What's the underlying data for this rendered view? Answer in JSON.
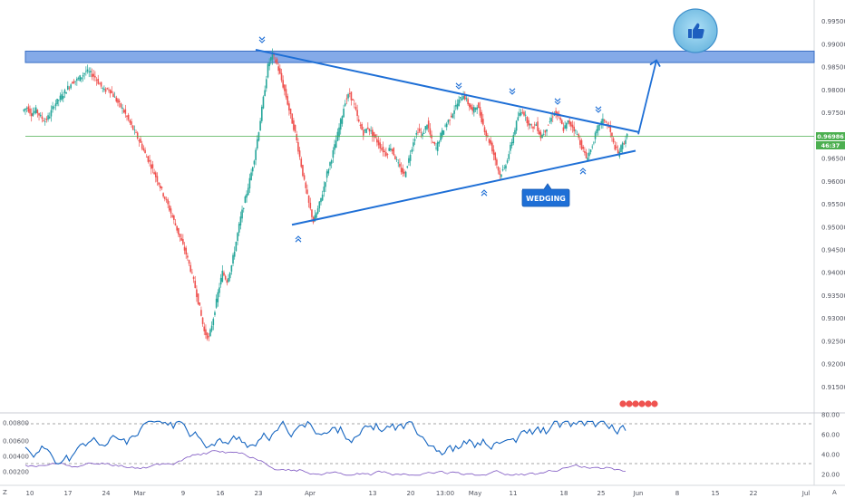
{
  "chart_data": [
    {
      "type": "candlestick",
      "x_tick_labels": [
        "10",
        "17",
        "24",
        "Mar",
        "9",
        "16",
        "23",
        "Apr",
        "13",
        "20",
        "13:00",
        "May",
        "11",
        "18",
        "25",
        "Jun",
        "8",
        "15",
        "22",
        "Jul"
      ],
      "y_tick_labels": [
        "0.99500",
        "0.99000",
        "0.98500",
        "0.98000",
        "0.97500",
        "0.97000",
        "0.96500",
        "0.96000",
        "0.95500",
        "0.95000",
        "0.94500",
        "0.94000",
        "0.93500",
        "0.93000",
        "0.92500",
        "0.92000",
        "0.91500"
      ],
      "ylim": [
        0.9125,
        0.9985
      ],
      "current_price": 0.96986,
      "current_price_label": "0.96986",
      "countdown_label": "46:37",
      "resistance_zone": [
        0.986,
        0.9885
      ],
      "trendlines": {
        "upper": {
          "from": [
            "23",
            0.9888
          ],
          "to": [
            "Jun",
            0.9708
          ]
        },
        "lower": {
          "from": [
            "Apr",
            0.9505
          ],
          "to": [
            "Jun",
            0.9667
          ]
        },
        "projection": {
          "from": [
            "Jun",
            0.9703
          ],
          "to": [
            "Jun",
            0.9865
          ]
        }
      },
      "annotation": "WEDGING",
      "closes": [
        0.9762,
        0.9748,
        0.9756,
        0.9741,
        0.9732,
        0.9745,
        0.9768,
        0.9779,
        0.9791,
        0.9805,
        0.9818,
        0.9822,
        0.983,
        0.9841,
        0.9836,
        0.9828,
        0.9812,
        0.9798,
        0.9803,
        0.9788,
        0.9772,
        0.9759,
        0.974,
        0.9721,
        0.9702,
        0.9683,
        0.966,
        0.9641,
        0.9618,
        0.9596,
        0.9571,
        0.9548,
        0.9522,
        0.9495,
        0.9468,
        0.9441,
        0.9407,
        0.9368,
        0.9322,
        0.9271,
        0.9256,
        0.9302,
        0.9355,
        0.9401,
        0.9382,
        0.9416,
        0.9468,
        0.952,
        0.9561,
        0.9603,
        0.9651,
        0.9712,
        0.9781,
        0.9852,
        0.9878,
        0.9856,
        0.9821,
        0.9785,
        0.9742,
        0.9706,
        0.9653,
        0.9598,
        0.9551,
        0.9512,
        0.9539,
        0.9574,
        0.9618,
        0.9652,
        0.9689,
        0.9731,
        0.9776,
        0.9792,
        0.9765,
        0.9728,
        0.9706,
        0.9718,
        0.9702,
        0.9688,
        0.9671,
        0.966,
        0.9676,
        0.9652,
        0.9628,
        0.9614,
        0.9649,
        0.9689,
        0.9712,
        0.9701,
        0.9727,
        0.9689,
        0.9672,
        0.9701,
        0.9722,
        0.9738,
        0.9758,
        0.9776,
        0.979,
        0.9771,
        0.9752,
        0.9768,
        0.9735,
        0.9702,
        0.9681,
        0.9648,
        0.9614,
        0.9629,
        0.9661,
        0.9702,
        0.9741,
        0.9756,
        0.9733,
        0.9718,
        0.9725,
        0.9697,
        0.9712,
        0.9731,
        0.9752,
        0.9739,
        0.9714,
        0.973,
        0.972,
        0.9703,
        0.9676,
        0.9651,
        0.9669,
        0.9701,
        0.9726,
        0.9735,
        0.9718,
        0.9682,
        0.966,
        0.9681,
        0.9699
      ],
      "indicators": [
        {
          "name": "",
          "tick_labels": [
            "0.00800",
            "0.00600",
            "0.00400",
            "0.00200"
          ],
          "color": "#1565c0"
        },
        {
          "name": "",
          "tick_labels": [
            "80.00",
            "60.00",
            "40.00",
            "20.00"
          ],
          "color": "#7e57c2",
          "levels": [
            70,
            30
          ]
        }
      ]
    }
  ],
  "colors": {
    "up": "#26a69a",
    "down": "#ef5350",
    "trendline": "#1e6fd6",
    "zone": "#6a9ae8",
    "price_line": "#4caf50",
    "axis_text": "#50535e"
  },
  "icons": [
    "thumbs-up-icon",
    "chevron-up-icon",
    "chevron-down-icon"
  ],
  "badge": "+"
}
